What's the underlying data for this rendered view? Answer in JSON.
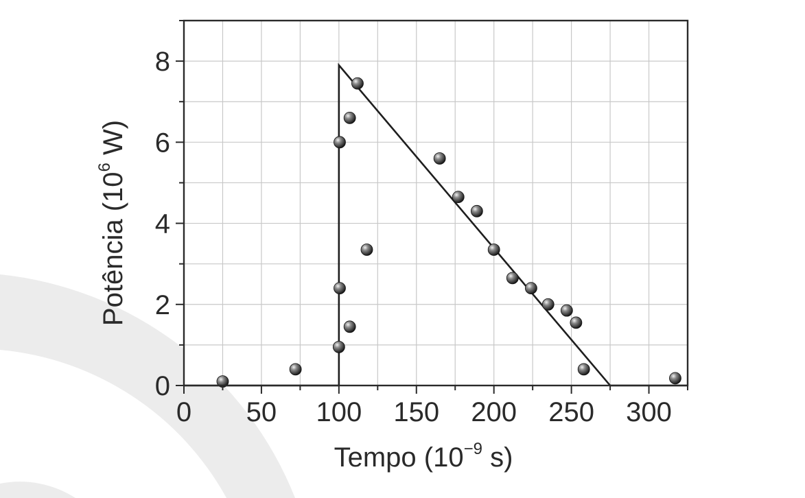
{
  "colors": {
    "background": "#ffffff",
    "watermark": "#ececec",
    "grid": "#c8c8c8",
    "axis": "#2a2a2a",
    "line": "#1e1e1e",
    "point": "#3a3a3a"
  },
  "chart_data": {
    "type": "scatter",
    "xlabel_main": "Tempo (10",
    "xlabel_sup": "−9",
    "xlabel_end": " s)",
    "ylabel_main": "Potência (10",
    "ylabel_sup": "6",
    "ylabel_end": " W)",
    "xlim": [
      0,
      325
    ],
    "ylim": [
      0,
      9
    ],
    "x_ticks": [
      0,
      50,
      100,
      150,
      200,
      250,
      300
    ],
    "x_tick_labels": [
      "0",
      "50",
      "100",
      "150",
      "200",
      "250",
      "300"
    ],
    "y_ticks": [
      0,
      2,
      4,
      6,
      8
    ],
    "y_tick_labels": [
      "0",
      "2",
      "4",
      "6",
      "8"
    ],
    "grid": true,
    "series": [
      {
        "kind": "points",
        "x": [
          25,
          72,
          100,
          100.5,
          100.5,
          107,
          107,
          112,
          118,
          165,
          177,
          189,
          200,
          212,
          224,
          235,
          247,
          253,
          258,
          317
        ],
        "y": [
          0.1,
          0.4,
          0.95,
          2.4,
          6.0,
          1.45,
          6.6,
          7.45,
          3.35,
          5.6,
          4.65,
          4.3,
          3.35,
          2.65,
          2.4,
          2.0,
          1.85,
          1.55,
          0.4,
          0.18
        ]
      },
      {
        "kind": "fit-line",
        "x": [
          0,
          100,
          100,
          275,
          325
        ],
        "y": [
          0,
          0,
          7.9,
          0,
          0
        ]
      }
    ]
  }
}
